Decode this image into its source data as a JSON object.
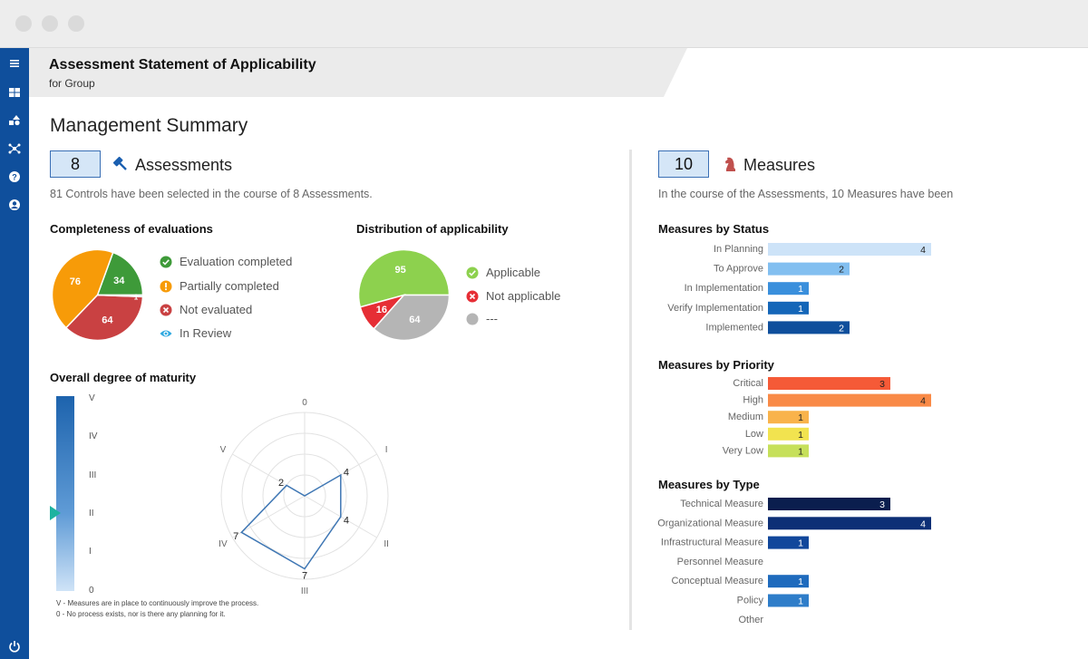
{
  "header": {
    "title": "Assessment Statement of Applicability",
    "subtitle": "for Group"
  },
  "summary_title": "Management Summary",
  "assessments": {
    "count": "8",
    "title": "Assessments",
    "description": "81 Controls have been selected in the course of 8 Assessments."
  },
  "measures": {
    "count": "10",
    "title": "Measures",
    "description": "In the course of the Assessments, 10 Measures have been"
  },
  "completeness": {
    "title": "Completeness of evaluations",
    "legend": [
      "Evaluation completed",
      "Partially completed",
      "Not evaluated",
      "In Review"
    ]
  },
  "applicability": {
    "title": "Distribution of applicability",
    "legend": [
      "Applicable",
      "Not applicable",
      "---"
    ]
  },
  "maturity": {
    "title": "Overall degree of maturity",
    "levels": [
      "V",
      "IV",
      "III",
      "II",
      "I",
      "0"
    ],
    "footnote_1": "V - Measures are in place to continuously improve the process.",
    "footnote_2": "0 - No process exists, nor is there any planning for it."
  },
  "chart_data": [
    {
      "type": "pie",
      "title": "Completeness of evaluations",
      "categories": [
        "Evaluation completed",
        "Partially completed",
        "Not evaluated",
        "In Review"
      ],
      "values": [
        34,
        76,
        64,
        1
      ],
      "colors": [
        "#3e9a39",
        "#f79b08",
        "#c94142",
        "#2ea8e0"
      ]
    },
    {
      "type": "pie",
      "title": "Distribution of applicability",
      "categories": [
        "Applicable",
        "Not applicable",
        "---"
      ],
      "values": [
        95,
        16,
        64
      ],
      "colors": [
        "#8dd14e",
        "#e62e35",
        "#b5b5b5"
      ]
    },
    {
      "type": "radar",
      "title": "Overall degree of maturity",
      "axes": [
        "0",
        "I",
        "II",
        "III",
        "IV",
        "V"
      ],
      "values": [
        0,
        4,
        4,
        7,
        7,
        2
      ],
      "max": 8
    },
    {
      "type": "bar",
      "title": "Measures by Status",
      "categories": [
        "In Planning",
        "To Approve",
        "In Implementation",
        "Verify Implementation",
        "Implemented"
      ],
      "values": [
        4,
        2,
        1,
        1,
        2
      ],
      "colors": [
        "#cde3f8",
        "#82bff0",
        "#3a8fdc",
        "#1466b8",
        "#0f4f9c"
      ],
      "label_colors": [
        "#222222",
        "#222222",
        "#ffffff",
        "#ffffff",
        "#ffffff"
      ]
    },
    {
      "type": "bar",
      "title": "Measures by Priority",
      "categories": [
        "Critical",
        "High",
        "Medium",
        "Low",
        "Very Low"
      ],
      "values": [
        3,
        4,
        1,
        1,
        1
      ],
      "colors": [
        "#f55a37",
        "#f98a47",
        "#f9b34b",
        "#f2e34f",
        "#c6e05a"
      ],
      "label_colors": [
        "#222222",
        "#222222",
        "#222222",
        "#222222",
        "#222222"
      ]
    },
    {
      "type": "bar",
      "title": "Measures by Type",
      "categories": [
        "Technical Measure",
        "Organizational Measure",
        "Infrastructural Measure",
        "Personnel Measure",
        "Conceptual Measure",
        "Policy",
        "Other"
      ],
      "values": [
        3,
        4,
        1,
        0,
        1,
        1,
        0
      ],
      "colors": [
        "#0a1e4e",
        "#0d2f76",
        "#11479b",
        "#11479b",
        "#1f6bbd",
        "#2e7dc9",
        "#2e7dc9"
      ],
      "label_colors": [
        "#ffffff",
        "#ffffff",
        "#ffffff",
        "#ffffff",
        "#ffffff",
        "#ffffff",
        "#ffffff"
      ]
    }
  ]
}
